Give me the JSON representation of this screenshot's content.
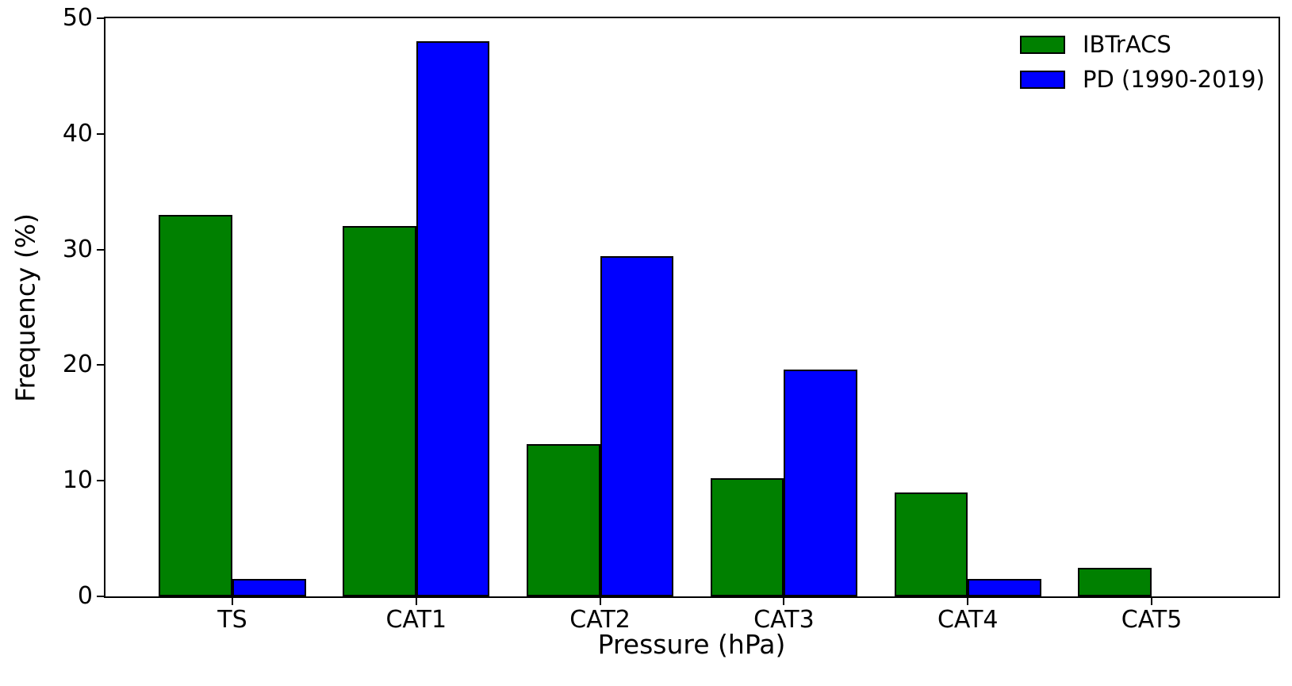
{
  "chart_data": {
    "type": "bar",
    "title": "",
    "xlabel": "Pressure (hPa)",
    "ylabel": "Frequency (%)",
    "categories": [
      "TS",
      "CAT1",
      "CAT2",
      "CAT3",
      "CAT4",
      "CAT5"
    ],
    "series": [
      {
        "name": "IBTrACS",
        "color": "#008000",
        "values": [
          33.0,
          32.0,
          13.2,
          10.2,
          9.0,
          2.5
        ]
      },
      {
        "name": "PD (1990-2019)",
        "color": "#0000ff",
        "values": [
          1.5,
          48.0,
          29.4,
          19.6,
          1.5,
          0.0
        ]
      }
    ],
    "ylim": [
      0,
      50
    ],
    "yticks": [
      0,
      10,
      20,
      30,
      40,
      50
    ],
    "bar_width_units": 0.4,
    "bar_edge_color": "#000000",
    "grid": false,
    "legend_position": "upper right",
    "legend_frame": false,
    "background_color": "#ffffff",
    "axis_color": "#000000"
  }
}
